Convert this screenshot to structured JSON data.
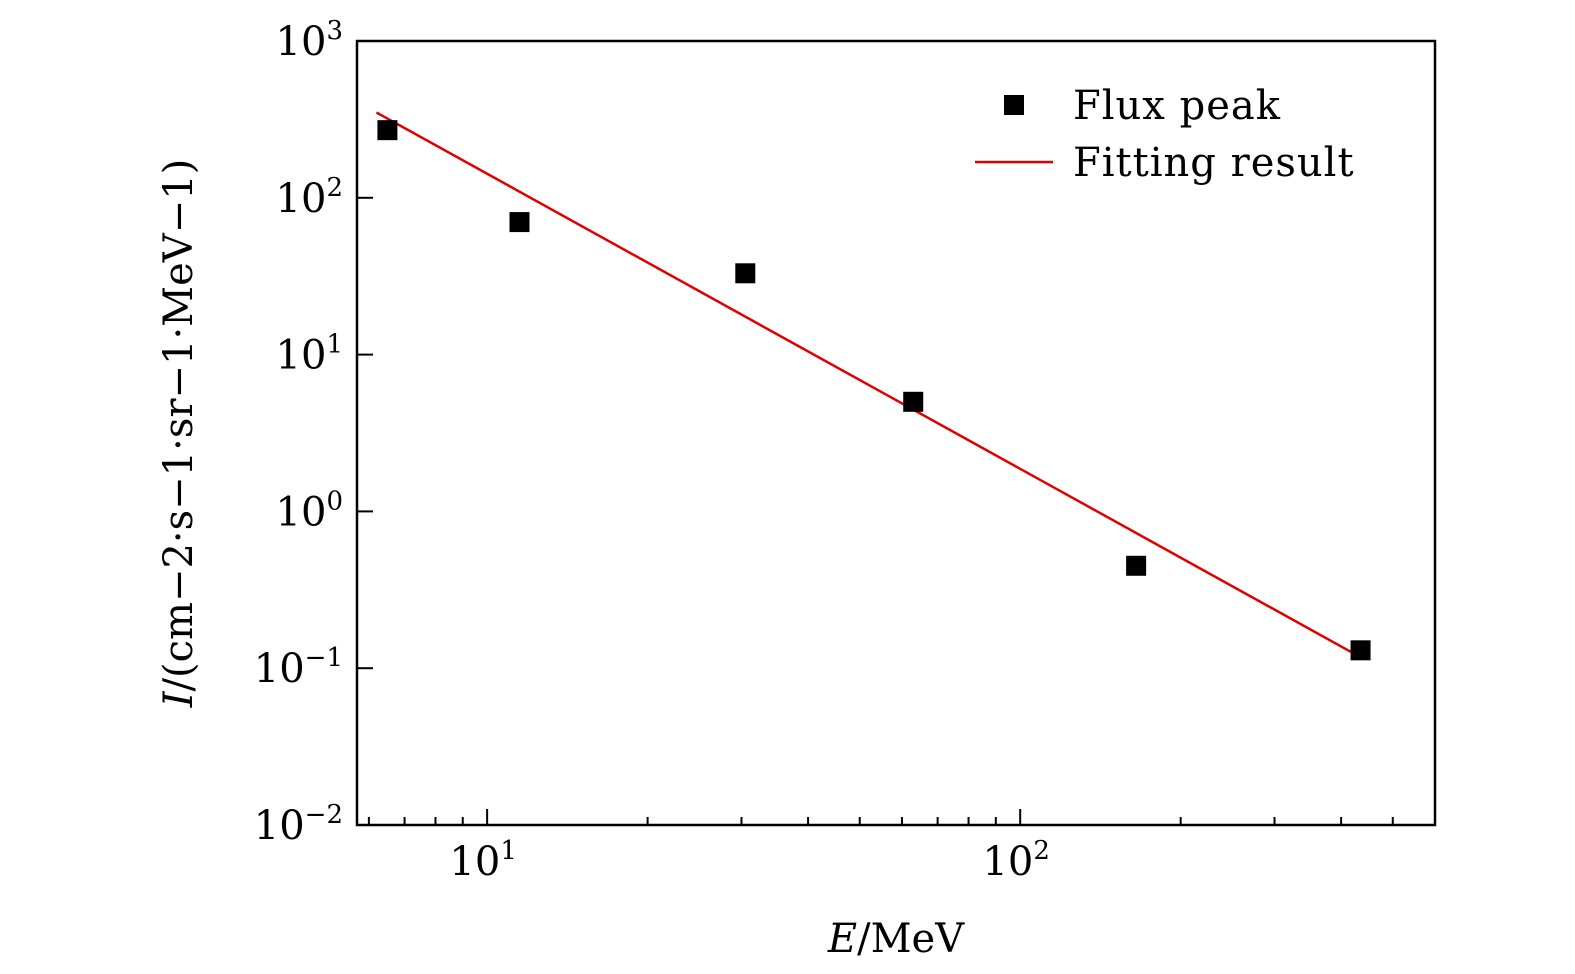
{
  "chart_data": {
    "type": "scatter",
    "title": "",
    "x_scale": "log",
    "y_scale": "log",
    "xlim": [
      5.7,
      600
    ],
    "ylim": [
      0.01,
      1000
    ],
    "xlabel": {
      "var": "E",
      "unit": "/MeV"
    },
    "ylabel": {
      "var": "I",
      "unit": "/(cm−2·s−1·sr−1·MeV−1)"
    },
    "x_ticks": [
      {
        "value": 10,
        "base": "10",
        "exp": "1"
      },
      {
        "value": 100,
        "base": "10",
        "exp": "2"
      }
    ],
    "y_ticks": [
      {
        "value": 0.01,
        "base": "10",
        "exp": "−2"
      },
      {
        "value": 0.1,
        "base": "10",
        "exp": "−1"
      },
      {
        "value": 1,
        "base": "10",
        "exp": "0"
      },
      {
        "value": 10,
        "base": "10",
        "exp": "1"
      },
      {
        "value": 100,
        "base": "10",
        "exp": "2"
      },
      {
        "value": 1000,
        "base": "10",
        "exp": "3"
      }
    ],
    "series": [
      {
        "name": "Flux peak",
        "kind": "scatter",
        "marker": "square",
        "color": "#000000",
        "points": [
          {
            "x": 6.5,
            "y": 270
          },
          {
            "x": 11.5,
            "y": 70
          },
          {
            "x": 30.5,
            "y": 33
          },
          {
            "x": 63,
            "y": 5.0
          },
          {
            "x": 165,
            "y": 0.45
          },
          {
            "x": 435,
            "y": 0.13
          }
        ]
      },
      {
        "name": "Fitting result",
        "kind": "line",
        "color": "#e00000",
        "points": [
          {
            "x": 6.2,
            "y": 350
          },
          {
            "x": 440,
            "y": 0.115
          }
        ]
      }
    ],
    "legend": {
      "position": "top-right",
      "entries": [
        "Flux peak",
        "Fitting result"
      ]
    }
  }
}
